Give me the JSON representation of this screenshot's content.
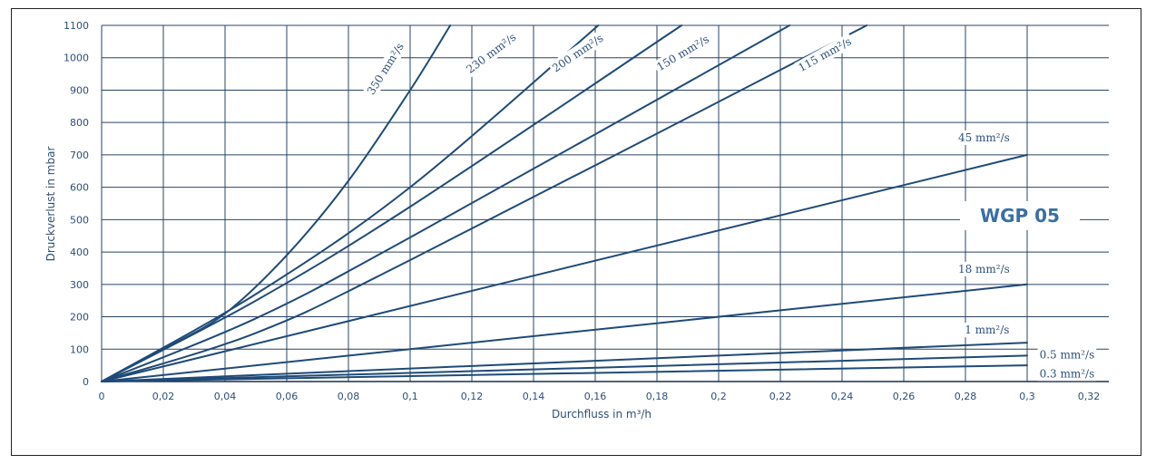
{
  "chart_data": {
    "type": "line",
    "title": "",
    "annotation": "WGP 05",
    "xlabel": "Durchfluss in m³/h",
    "ylabel": "Druckverlust in mbar",
    "xlim": [
      0,
      0.32
    ],
    "ylim": [
      0,
      1100
    ],
    "x_ticks": [
      "0",
      "0,02",
      "0,04",
      "0,06",
      "0,08",
      "0,1",
      "0,12",
      "0,14",
      "0,16",
      "0,18",
      "0,2",
      "0,22",
      "0,24",
      "0,26",
      "0,28",
      "0,3",
      "0,32"
    ],
    "y_ticks": [
      "0",
      "100",
      "200",
      "300",
      "400",
      "500",
      "600",
      "700",
      "800",
      "900",
      "1000",
      "1100"
    ],
    "grid": true,
    "colors": {
      "line": "#1f4a78",
      "grid": "#2a4466",
      "text": "#2d4f7a",
      "brand": "#3a6fa5"
    },
    "series": [
      {
        "name": "350 mm²/s",
        "x": [
          0,
          0.02,
          0.04,
          0.06,
          0.08,
          0.1,
          0.113
        ],
        "y": [
          0,
          100,
          210,
          390,
          620,
          900,
          1100
        ]
      },
      {
        "name": "230 mm²/s",
        "x": [
          0,
          0.05,
          0.1,
          0.161
        ],
        "y": [
          0,
          270,
          600,
          1100
        ]
      },
      {
        "name": "200 mm²/s",
        "x": [
          0,
          0.05,
          0.1,
          0.188
        ],
        "y": [
          0,
          250,
          540,
          1100
        ]
      },
      {
        "name": "150 mm²/s",
        "x": [
          0,
          0.05,
          0.1,
          0.223
        ],
        "y": [
          0,
          195,
          445,
          1100
        ]
      },
      {
        "name": "115 mm²/s",
        "x": [
          0,
          0.05,
          0.1,
          0.248
        ],
        "y": [
          0,
          150,
          375,
          1100
        ]
      },
      {
        "name": "45 mm²/s",
        "x": [
          0,
          0.3
        ],
        "y": [
          0,
          700
        ]
      },
      {
        "name": "18  mm²/s",
        "x": [
          0,
          0.3
        ],
        "y": [
          0,
          300
        ]
      },
      {
        "name": "1 mm²/s",
        "x": [
          0,
          0.3
        ],
        "y": [
          0,
          120
        ]
      },
      {
        "name": "0.5 mm²/s",
        "x": [
          0,
          0.3
        ],
        "y": [
          0,
          80
        ]
      },
      {
        "name": "0.3 mm²/s",
        "x": [
          0,
          0.3
        ],
        "y": [
          0,
          50
        ]
      }
    ]
  }
}
